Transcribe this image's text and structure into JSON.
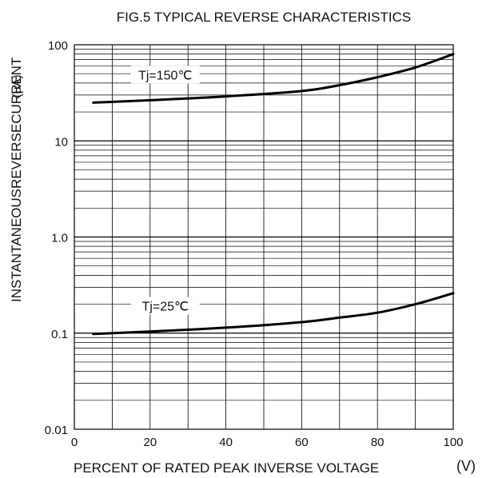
{
  "chart_data": {
    "type": "line",
    "title": "FIG.5 TYPICAL REVERSE CHARACTERISTICS",
    "xlabel": "PERCENT OF RATED PEAK INVERSE VOLTAGE",
    "xunit": "(V)",
    "ylabel": "INSTANTANEOUSREVERSECURRENT",
    "yunit": "(μA)",
    "xlim": [
      0,
      100
    ],
    "ylim": [
      0.01,
      100
    ],
    "yscale": "log",
    "grid": true,
    "x_ticks": [
      0,
      20,
      40,
      60,
      80,
      100
    ],
    "x_tick_labels": [
      "0",
      "20",
      "40",
      "60",
      "80",
      "100"
    ],
    "y_ticks": [
      0.01,
      0.1,
      1,
      10,
      100
    ],
    "y_tick_labels": [
      "0.01",
      "0.1",
      "1.0",
      "10",
      "100"
    ],
    "series": [
      {
        "name": "Tj=150℃",
        "x": [
          5,
          20,
          40,
          60,
          70,
          80,
          90,
          100
        ],
        "y": [
          25,
          26.5,
          29,
          33,
          38,
          46,
          58,
          80
        ]
      },
      {
        "name": "Tj=25℃",
        "x": [
          5,
          20,
          40,
          60,
          70,
          80,
          90,
          100
        ],
        "y": [
          0.098,
          0.104,
          0.114,
          0.13,
          0.145,
          0.163,
          0.2,
          0.26
        ]
      }
    ]
  }
}
